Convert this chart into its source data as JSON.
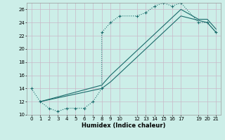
{
  "xlabel": "Humidex (Indice chaleur)",
  "bg_color": "#cceee8",
  "grid_color": "#c8b8c8",
  "line_color": "#1a6b6b",
  "ylim": [
    10,
    27
  ],
  "xlim": [
    -0.5,
    21.5
  ],
  "yticks": [
    10,
    12,
    14,
    16,
    18,
    20,
    22,
    24,
    26
  ],
  "xticks": [
    0,
    1,
    2,
    3,
    4,
    5,
    6,
    7,
    8,
    9,
    10,
    12,
    13,
    14,
    15,
    16,
    17,
    19,
    20,
    21
  ],
  "dotted_x": [
    0,
    1,
    2,
    3,
    4,
    5,
    6,
    7,
    8,
    8,
    9,
    10,
    12,
    13,
    14,
    15,
    16,
    17,
    19,
    20,
    21
  ],
  "dotted_y": [
    14,
    12,
    11,
    10.5,
    11,
    11,
    11,
    12,
    14,
    22.5,
    24,
    25,
    25,
    25.5,
    26.5,
    27,
    26.5,
    27,
    24,
    24,
    22.5
  ],
  "line2_x": [
    1,
    8,
    9,
    17,
    20,
    21
  ],
  "line2_y": [
    12,
    14,
    15,
    25,
    24,
    22.5
  ],
  "line3_x": [
    1,
    8,
    9,
    17,
    19,
    20,
    21
  ],
  "line3_y": [
    12,
    14.5,
    16,
    26,
    24.5,
    24.5,
    23
  ]
}
